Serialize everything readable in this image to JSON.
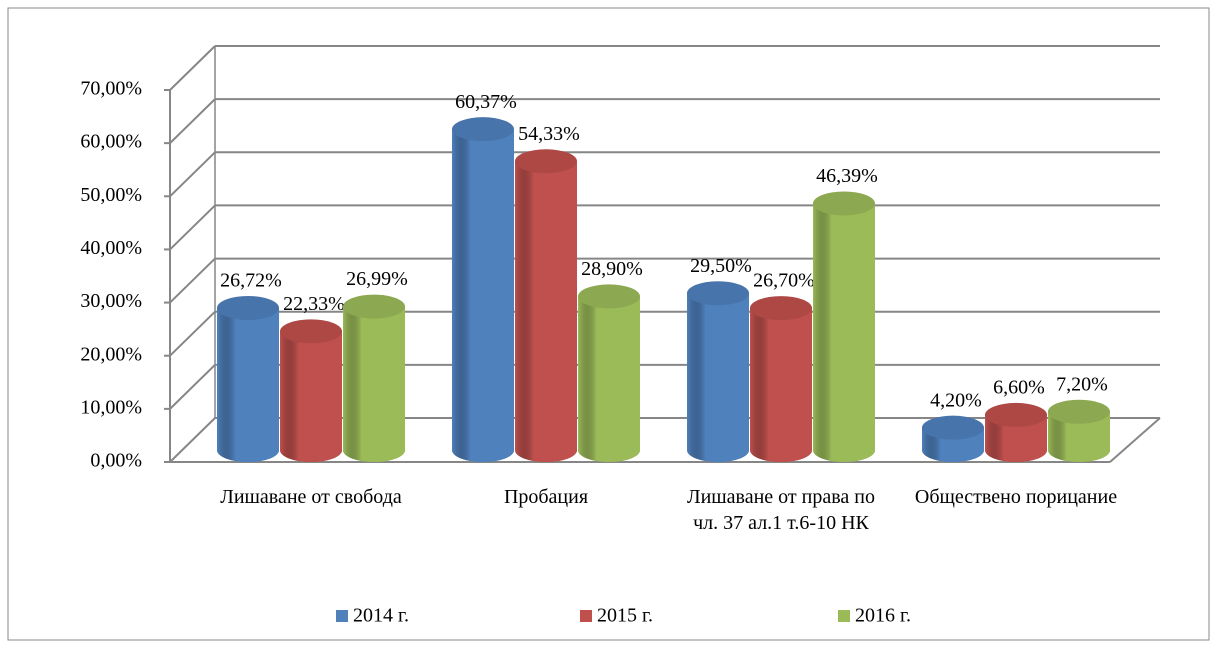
{
  "chart_data": {
    "type": "bar3d",
    "categories": [
      "Лишаване от свобода",
      "Пробация",
      "Лишаване от права по чл. 37 ал.1 т.6-10 НК",
      "Обществено порицание"
    ],
    "series": [
      {
        "name": "2014 г.",
        "color": "#4f81bd",
        "values": [
          26.72,
          60.37,
          29.5,
          4.2
        ],
        "value_labels": [
          "26,72%",
          "60,37%",
          "29,50%",
          "4,20%"
        ]
      },
      {
        "name": "2015 г.",
        "color": "#c0504d",
        "values": [
          22.33,
          54.33,
          26.7,
          6.6
        ],
        "value_labels": [
          "22,33%",
          "54,33%",
          "26,70%",
          "6,60%"
        ]
      },
      {
        "name": "2016 г.",
        "color": "#9bbb59",
        "values": [
          26.99,
          28.9,
          46.39,
          7.2
        ],
        "value_labels": [
          "26,99%",
          "28,90%",
          "46,39%",
          "7,20%"
        ]
      }
    ],
    "ylim": [
      0,
      70
    ],
    "yticks": [
      {
        "value": 0,
        "label": "0,00%"
      },
      {
        "value": 10,
        "label": "10,00%"
      },
      {
        "value": 20,
        "label": "20,00%"
      },
      {
        "value": 30,
        "label": "30,00%"
      },
      {
        "value": 40,
        "label": "40,00%"
      },
      {
        "value": 50,
        "label": "50,00%"
      },
      {
        "value": 60,
        "label": "60,00%"
      },
      {
        "value": 70,
        "label": "70,00%"
      }
    ],
    "grid": true,
    "legend": "bottom"
  }
}
